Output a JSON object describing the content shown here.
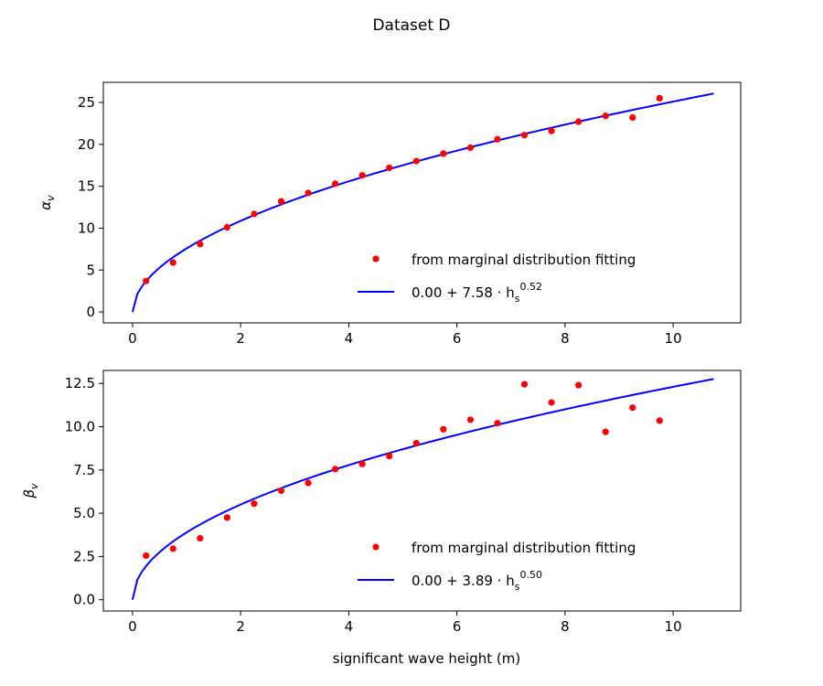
{
  "figure": {
    "title": "Dataset D"
  },
  "chart_data": [
    {
      "type": "scatter",
      "ylabel_base": "α",
      "ylabel_sub": "v",
      "xlabel": "",
      "xlim": [
        -0.54,
        11.25
      ],
      "ylim": [
        -1.3,
        27.4
      ],
      "xticks": [
        0,
        2,
        4,
        6,
        8,
        10
      ],
      "xtick_labels": [
        "0",
        "2",
        "4",
        "6",
        "8",
        "10"
      ],
      "yticks": [
        0,
        5,
        10,
        15,
        20,
        25
      ],
      "ytick_labels": [
        "0",
        "5",
        "10",
        "15",
        "20",
        "25"
      ],
      "legend_position": "lower-right",
      "series": [
        {
          "name": "from marginal distribution fitting",
          "kind": "points",
          "color": "#ff0000",
          "x": [
            0.25,
            0.75,
            1.25,
            1.75,
            2.25,
            2.75,
            3.25,
            3.75,
            4.25,
            4.75,
            5.25,
            5.75,
            6.25,
            6.75,
            7.25,
            7.75,
            8.25,
            8.75,
            9.25,
            9.75
          ],
          "y": [
            3.7,
            5.9,
            8.1,
            10.1,
            11.7,
            13.2,
            14.2,
            15.3,
            16.3,
            17.2,
            18.0,
            18.9,
            19.6,
            20.6,
            21.1,
            21.6,
            22.7,
            23.4,
            23.2,
            25.5
          ]
        },
        {
          "name_parts": [
            "0.00 + 7.58 · h",
            "s",
            "0.52"
          ],
          "kind": "fit",
          "color": "#0000ff",
          "fit": {
            "a": 0.0,
            "b": 7.58,
            "c": 0.52,
            "x_max": 10.75
          }
        }
      ]
    },
    {
      "type": "scatter",
      "ylabel_base": "β",
      "ylabel_sub": "v",
      "xlabel": "significant wave height (m)",
      "xlim": [
        -0.54,
        11.25
      ],
      "ylim": [
        -0.65,
        13.25
      ],
      "xticks": [
        0,
        2,
        4,
        6,
        8,
        10
      ],
      "xtick_labels": [
        "0",
        "2",
        "4",
        "6",
        "8",
        "10"
      ],
      "yticks": [
        0,
        2.5,
        5,
        7.5,
        10,
        12.5
      ],
      "ytick_labels": [
        "0.0",
        "2.5",
        "5.0",
        "7.5",
        "10.0",
        "12.5"
      ],
      "legend_position": "lower-right",
      "series": [
        {
          "name": "from marginal distribution fitting",
          "kind": "points",
          "color": "#ff0000",
          "x": [
            0.25,
            0.75,
            1.25,
            1.75,
            2.25,
            2.75,
            3.25,
            3.75,
            4.25,
            4.75,
            5.25,
            5.75,
            6.25,
            6.75,
            7.25,
            7.75,
            8.25,
            8.75,
            9.25,
            9.75
          ],
          "y": [
            2.55,
            2.95,
            3.55,
            4.75,
            5.55,
            6.3,
            6.75,
            7.55,
            7.85,
            8.3,
            9.05,
            9.85,
            10.4,
            10.2,
            12.45,
            11.4,
            12.4,
            9.7,
            11.1,
            10.35
          ]
        },
        {
          "name_parts": [
            "0.00 + 3.89 · h",
            "s",
            "0.50"
          ],
          "kind": "fit",
          "color": "#0000ff",
          "fit": {
            "a": 0.0,
            "b": 3.89,
            "c": 0.5,
            "x_max": 10.75
          }
        }
      ]
    }
  ]
}
